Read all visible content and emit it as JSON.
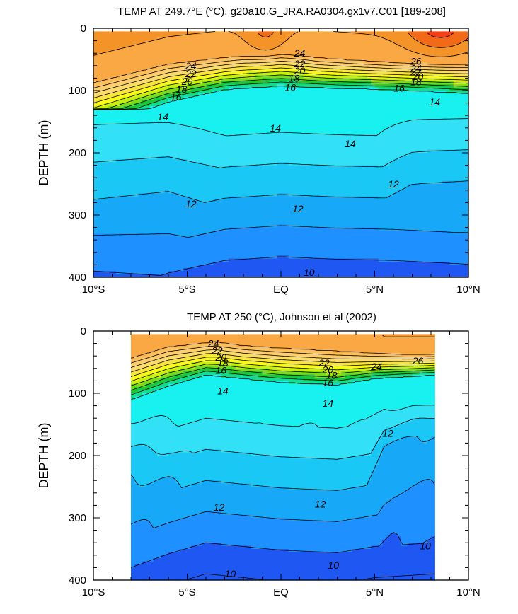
{
  "colors": {
    "levels": [
      {
        "lo": -100,
        "hi": 10,
        "color": "#1f57f2"
      },
      {
        "lo": 10,
        "hi": 11,
        "color": "#1e90ff"
      },
      {
        "lo": 11,
        "hi": 12,
        "color": "#17a9f7"
      },
      {
        "lo": 12,
        "hi": 13,
        "color": "#1bc8f5"
      },
      {
        "lo": 13,
        "hi": 14,
        "color": "#33e1f7"
      },
      {
        "lo": 14,
        "hi": 15,
        "color": "#19f0f0"
      },
      {
        "lo": 15,
        "hi": 16,
        "color": "#13dd8f"
      },
      {
        "lo": 16,
        "hi": 17,
        "color": "#19c83a"
      },
      {
        "lo": 17,
        "hi": 18,
        "color": "#78dc1e"
      },
      {
        "lo": 18,
        "hi": 19,
        "color": "#c8f00f"
      },
      {
        "lo": 19,
        "hi": 20,
        "color": "#fafa18"
      },
      {
        "lo": 20,
        "hi": 21,
        "color": "#f9e43e"
      },
      {
        "lo": 21,
        "hi": 22,
        "color": "#fbdc6a"
      },
      {
        "lo": 22,
        "hi": 23,
        "color": "#fcce6e"
      },
      {
        "lo": 23,
        "hi": 24,
        "color": "#fbbf5e"
      },
      {
        "lo": 24,
        "hi": 25,
        "color": "#faa844"
      },
      {
        "lo": 25,
        "hi": 26,
        "color": "#f49428"
      },
      {
        "lo": 26,
        "hi": 27,
        "color": "#f26a17"
      },
      {
        "lo": 27,
        "hi": 100,
        "color": "#f53e12"
      }
    ]
  },
  "chart_data": [
    {
      "type": "contour",
      "title": "TEMP AT 249.7°E (°C), g20a10.G_JRA.RA0304.gx1v7.C01 [189-208]",
      "xlabel": "",
      "ylabel": "DEPTH (m)",
      "xlim": [
        -10,
        10
      ],
      "ylim": [
        400,
        0
      ],
      "x_ticks": [
        -10,
        -5,
        0,
        5,
        10
      ],
      "x_tick_labels": [
        "10°S",
        "5°S",
        "EQ",
        "5°N",
        "10°N"
      ],
      "y_ticks": [
        0,
        100,
        200,
        300,
        400
      ],
      "y_tick_labels": [
        "0",
        "100",
        "200",
        "300",
        "400"
      ],
      "data_xlim": [
        -10,
        10
      ],
      "data_ylim": [
        5,
        400
      ],
      "contour_interval": 1,
      "labeled_contours": [
        {
          "level": 24,
          "x": -4.8,
          "y": 60
        },
        {
          "level": 22,
          "x": -4.8,
          "y": 73
        },
        {
          "level": 20,
          "x": -5.0,
          "y": 85
        },
        {
          "level": 18,
          "x": -5.3,
          "y": 98
        },
        {
          "level": 16,
          "x": -5.6,
          "y": 110
        },
        {
          "level": 14,
          "x": -6.3,
          "y": 142
        },
        {
          "level": 24,
          "x": 1.0,
          "y": 40
        },
        {
          "level": 22,
          "x": 1.0,
          "y": 57
        },
        {
          "level": 20,
          "x": 1.0,
          "y": 68
        },
        {
          "level": 18,
          "x": 0.7,
          "y": 80
        },
        {
          "level": 16,
          "x": 0.5,
          "y": 95
        },
        {
          "level": 14,
          "x": -0.3,
          "y": 160
        },
        {
          "level": 14,
          "x": 3.7,
          "y": 185
        },
        {
          "level": 26,
          "x": 7.2,
          "y": 53
        },
        {
          "level": 24,
          "x": 7.2,
          "y": 64
        },
        {
          "level": 22,
          "x": 7.2,
          "y": 70
        },
        {
          "level": 20,
          "x": 7.3,
          "y": 77
        },
        {
          "level": 18,
          "x": 7.2,
          "y": 86
        },
        {
          "level": 16,
          "x": 6.3,
          "y": 96
        },
        {
          "level": 14,
          "x": 8.2,
          "y": 118
        },
        {
          "level": 12,
          "x": -4.8,
          "y": 282
        },
        {
          "level": 12,
          "x": 0.9,
          "y": 290
        },
        {
          "level": 12,
          "x": 6.0,
          "y": 250
        },
        {
          "level": 10,
          "x": 1.5,
          "y": 392
        }
      ]
    },
    {
      "type": "contour",
      "title": "TEMP AT 250 (°C), Johnson et al (2002)",
      "xlabel": "",
      "ylabel": "DEPTH (m)",
      "xlim": [
        -10,
        10
      ],
      "ylim": [
        400,
        0
      ],
      "x_ticks": [
        -10,
        -5,
        0,
        5,
        10
      ],
      "x_tick_labels": [
        "10°S",
        "5°S",
        "EQ",
        "5°N",
        "10°N"
      ],
      "y_ticks": [
        0,
        100,
        200,
        300,
        400
      ],
      "y_tick_labels": [
        "0",
        "100",
        "200",
        "300",
        "400"
      ],
      "data_xlim": [
        -8,
        8.2
      ],
      "data_ylim": [
        5,
        400
      ],
      "contour_interval": 1,
      "labeled_contours": [
        {
          "level": 24,
          "x": -3.6,
          "y": 20
        },
        {
          "level": 22,
          "x": -3.4,
          "y": 31
        },
        {
          "level": 20,
          "x": -3.2,
          "y": 42
        },
        {
          "level": 18,
          "x": -3.1,
          "y": 51
        },
        {
          "level": 16,
          "x": -3.2,
          "y": 63
        },
        {
          "level": 14,
          "x": -3.1,
          "y": 96
        },
        {
          "level": 22,
          "x": 2.3,
          "y": 51
        },
        {
          "level": 20,
          "x": 2.5,
          "y": 62
        },
        {
          "level": 18,
          "x": 2.7,
          "y": 71
        },
        {
          "level": 16,
          "x": 2.5,
          "y": 83
        },
        {
          "level": 14,
          "x": 2.5,
          "y": 116
        },
        {
          "level": 24,
          "x": 5.1,
          "y": 57
        },
        {
          "level": 26,
          "x": 7.3,
          "y": 48
        },
        {
          "level": 12,
          "x": 5.7,
          "y": 164
        },
        {
          "level": 12,
          "x": -3.3,
          "y": 283
        },
        {
          "level": 12,
          "x": 2.1,
          "y": 278
        },
        {
          "level": 10,
          "x": -2.7,
          "y": 390
        },
        {
          "level": 10,
          "x": 2.8,
          "y": 376
        },
        {
          "level": 10,
          "x": 7.7,
          "y": 345
        }
      ]
    }
  ]
}
